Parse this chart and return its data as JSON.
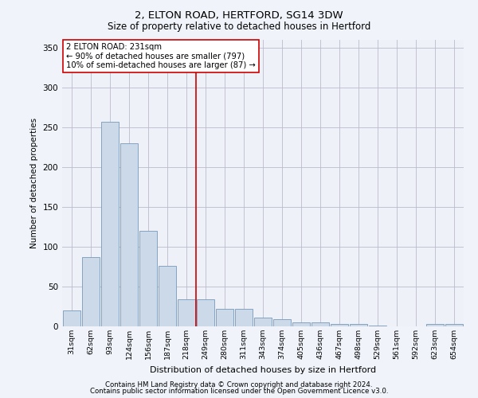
{
  "title1": "2, ELTON ROAD, HERTFORD, SG14 3DW",
  "title2": "Size of property relative to detached houses in Hertford",
  "xlabel": "Distribution of detached houses by size in Hertford",
  "ylabel": "Number of detached properties",
  "categories": [
    "31sqm",
    "62sqm",
    "93sqm",
    "124sqm",
    "156sqm",
    "187sqm",
    "218sqm",
    "249sqm",
    "280sqm",
    "311sqm",
    "343sqm",
    "374sqm",
    "405sqm",
    "436sqm",
    "467sqm",
    "498sqm",
    "529sqm",
    "561sqm",
    "592sqm",
    "623sqm",
    "654sqm"
  ],
  "values": [
    20,
    87,
    257,
    230,
    120,
    76,
    34,
    34,
    22,
    22,
    11,
    9,
    5,
    5,
    3,
    3,
    1,
    0,
    0,
    3,
    3
  ],
  "bar_color": "#ccd9e8",
  "bar_edge_color": "#7799bb",
  "vline_x": 6.5,
  "vline_color": "#cc0000",
  "annotation_text": "2 ELTON ROAD: 231sqm\n← 90% of detached houses are smaller (797)\n10% of semi-detached houses are larger (87) →",
  "annotation_box_facecolor": "#ffffff",
  "annotation_box_edgecolor": "#cc0000",
  "background_color": "#f0f4fa",
  "plot_bg_color": "#eef2f8",
  "grid_color": "#bbbbcc",
  "footer1": "Contains HM Land Registry data © Crown copyright and database right 2024.",
  "footer2": "Contains public sector information licensed under the Open Government Licence v3.0.",
  "ylim": [
    0,
    360
  ],
  "yticks": [
    0,
    50,
    100,
    150,
    200,
    250,
    300,
    350
  ]
}
